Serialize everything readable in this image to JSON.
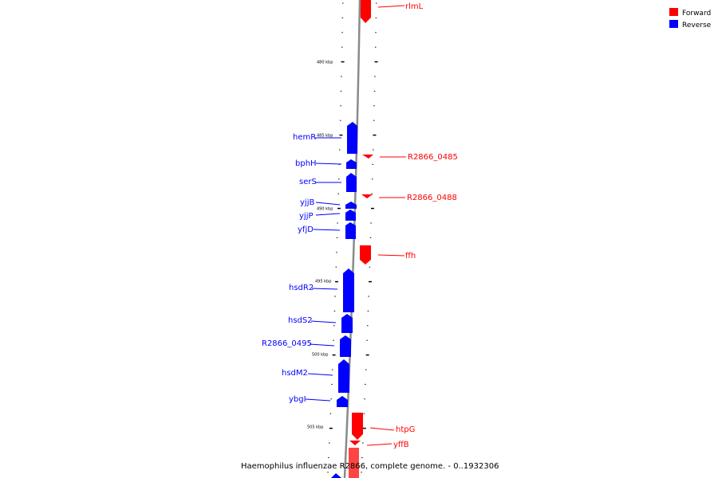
{
  "legend": [
    {
      "label": "Forward",
      "color": "#ff0000"
    },
    {
      "label": "Reverse",
      "color": "#0000ff"
    }
  ],
  "caption": "Haemophilus influenzae R2866, complete genome. - 0..1932306",
  "ticks": [
    {
      "kbp": 480,
      "label": "480 kbp"
    },
    {
      "kbp": 485,
      "label": "485 kbp"
    },
    {
      "kbp": 490,
      "label": "490 kbp"
    },
    {
      "kbp": 495,
      "label": "495 kbp"
    },
    {
      "kbp": 500,
      "label": "500 kbp"
    },
    {
      "kbp": 505,
      "label": "505 kbp"
    }
  ],
  "genes": [
    {
      "name": "rlmL",
      "strand": "forward"
    },
    {
      "name": "hemR",
      "strand": "reverse"
    },
    {
      "name": "R2866_0485",
      "strand": "forward"
    },
    {
      "name": "bphH",
      "strand": "reverse"
    },
    {
      "name": "serS",
      "strand": "reverse"
    },
    {
      "name": "R2866_0488",
      "strand": "forward"
    },
    {
      "name": "yjjB",
      "strand": "reverse"
    },
    {
      "name": "yjjP",
      "strand": "reverse"
    },
    {
      "name": "yfjD",
      "strand": "reverse"
    },
    {
      "name": "ffh",
      "strand": "forward"
    },
    {
      "name": "hsdR2",
      "strand": "reverse"
    },
    {
      "name": "hsdS2",
      "strand": "reverse"
    },
    {
      "name": "R2866_0495",
      "strand": "reverse"
    },
    {
      "name": "hsdM2",
      "strand": "reverse"
    },
    {
      "name": "ybgI",
      "strand": "reverse"
    },
    {
      "name": "htpG",
      "strand": "forward"
    },
    {
      "name": "yffB",
      "strand": "forward"
    }
  ]
}
